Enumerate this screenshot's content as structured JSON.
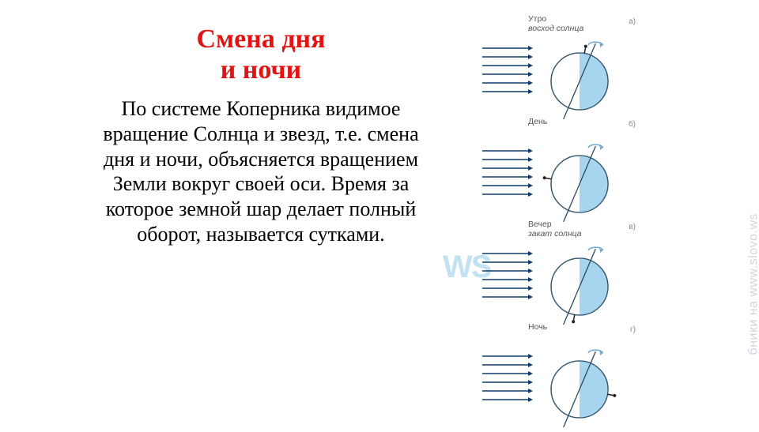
{
  "title": {
    "line1": "Смена дня",
    "line2": "и ночи",
    "color": "#e11313",
    "fontsize": 34
  },
  "body": {
    "text": "По системе Коперника видимое вращение Солнца и звезд, т.е. смена дня и ночи, объясняется вращением Земли вокруг своей оси. Время за которое земной шар делает полный оборот, называется сутками.",
    "fontsize": 26,
    "color": "#000000"
  },
  "watermark": {
    "side_text": "бники на www.slovo.ws",
    "ws_text": "WS",
    "ws_color": "#bfe1f2",
    "ws_fontsize": 40
  },
  "diagram": {
    "arrow_color": "#0f3a6b",
    "arrow_count": 6,
    "arrow_length": 66,
    "arrow_spacing": 11,
    "globe": {
      "radius": 36,
      "lit_color": "#a7d4ee",
      "dark_color": "#ffffff",
      "outline_color": "#36586f",
      "axis_color": "#2c4a63",
      "axis_tilt_deg": 23,
      "rot_arrow_color": "#6da9cc"
    },
    "phases": [
      {
        "label": "Утро",
        "sublabel": "восход солнца",
        "marker": "а)",
        "observer_angle_deg": 80
      },
      {
        "label": "День",
        "sublabel": "",
        "marker": "б)",
        "observer_angle_deg": 170
      },
      {
        "label": "Вечер",
        "sublabel": "закат солнца",
        "marker": "в)",
        "observer_angle_deg": 260
      },
      {
        "label": "Ночь",
        "sublabel": "",
        "marker": "г)",
        "observer_angle_deg": 350
      }
    ]
  }
}
